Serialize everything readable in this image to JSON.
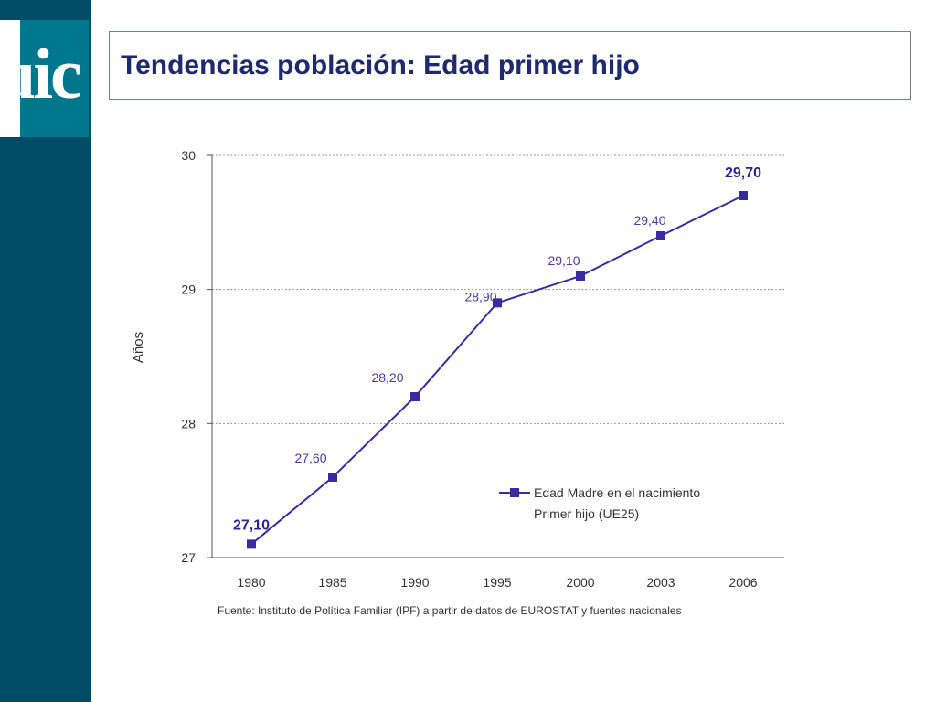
{
  "logo": {
    "text": "uic"
  },
  "slide": {
    "title": "Tendencias población: Edad primer hijo"
  },
  "colors": {
    "sidebar": "#004b66",
    "logo_bg": "#00778c",
    "title": "#1f2a6e",
    "series": "#3a2ba0"
  },
  "chart_data": {
    "type": "line",
    "title": "",
    "xlabel": "",
    "ylabel": "Años",
    "categories": [
      "1980",
      "1985",
      "1990",
      "1995",
      "2000",
      "2003",
      "2006"
    ],
    "y_ticks": [
      "27",
      "28",
      "29",
      "30"
    ],
    "ylim": [
      27,
      30
    ],
    "grid": true,
    "legend_placement": "lower-right",
    "series": [
      {
        "name_lines": [
          "Edad Madre en el nacimiento",
          "Primer hijo (UE25)"
        ],
        "values": [
          27.1,
          27.6,
          28.2,
          28.9,
          29.1,
          29.4,
          29.7
        ],
        "labels": [
          "27,10",
          "27,60",
          "28,20",
          "28,90",
          "29,10",
          "29,40",
          "29,70"
        ],
        "bold_label_indices": [
          0,
          6
        ]
      }
    ],
    "source": "Fuente: Instituto de Política Familiar (IPF) a partir de datos de EUROSTAT y fuentes nacionales"
  }
}
